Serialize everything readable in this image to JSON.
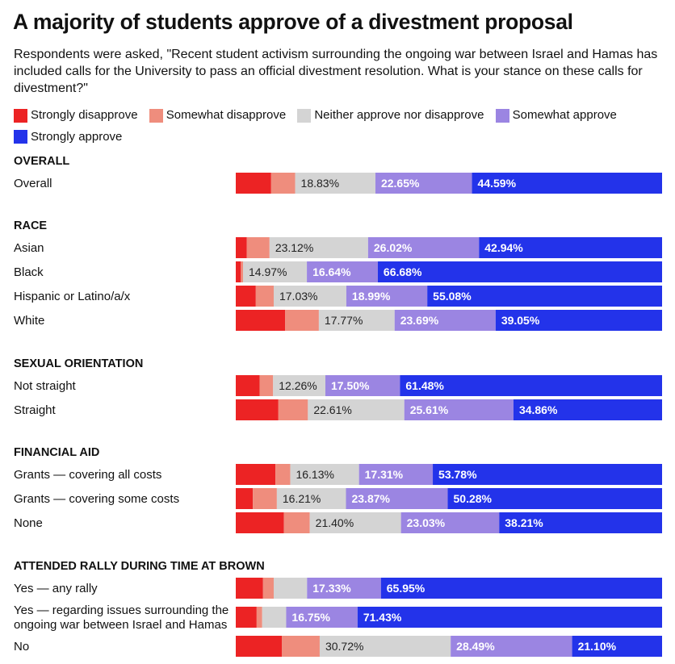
{
  "title": "A majority of students approve of a divestment proposal",
  "subtitle": "Respondents were asked, \"Recent student activism surrounding the ongoing war between Israel and Hamas has included calls for the University to pass an official divestment resolution. What is your stance on these calls for divestment?\"",
  "colors": {
    "strongly_disapprove": "#ec2324",
    "somewhat_disapprove": "#ef8d7d",
    "neither": "#d4d4d4",
    "somewhat_approve": "#9b85e2",
    "strongly_approve": "#2333ea"
  },
  "legend": [
    {
      "label": "Strongly disapprove",
      "color": "#ec2324"
    },
    {
      "label": "Somewhat disapprove",
      "color": "#ef8d7d"
    },
    {
      "label": "Neither approve nor disapprove",
      "color": "#d4d4d4"
    },
    {
      "label": "Somewhat approve",
      "color": "#9b85e2"
    },
    {
      "label": "Strongly approve",
      "color": "#2333ea"
    }
  ],
  "chart_data": {
    "type": "bar",
    "orientation": "horizontal",
    "stacked": true,
    "unit": "%",
    "series": [
      "Strongly disapprove",
      "Somewhat disapprove",
      "Neither approve nor disapprove",
      "Somewhat approve",
      "Strongly approve"
    ],
    "groups": [
      {
        "name": "OVERALL",
        "rows": [
          {
            "label": "Overall",
            "values": [
              8.3,
              5.63,
              18.83,
              22.65,
              44.59
            ]
          }
        ]
      },
      {
        "name": "RACE",
        "rows": [
          {
            "label": "Asian",
            "values": [
              2.6,
              5.32,
              23.12,
              26.02,
              42.94
            ]
          },
          {
            "label": "Black",
            "values": [
              1.2,
              0.51,
              14.97,
              16.64,
              66.68
            ]
          },
          {
            "label": "Hispanic or Latino/a/x",
            "values": [
              4.7,
              4.2,
              17.03,
              18.99,
              55.08
            ]
          },
          {
            "label": "White",
            "values": [
              11.6,
              7.89,
              17.77,
              23.69,
              39.05
            ]
          }
        ]
      },
      {
        "name": "SEXUAL ORIENTATION",
        "rows": [
          {
            "label": "Not straight",
            "values": [
              5.6,
              3.16,
              12.26,
              17.5,
              61.48
            ]
          },
          {
            "label": "Straight",
            "values": [
              10.0,
              6.92,
              22.61,
              25.61,
              34.86
            ]
          }
        ]
      },
      {
        "name": "FINANCIAL AID",
        "rows": [
          {
            "label": "Grants — covering all costs",
            "values": [
              9.3,
              3.48,
              16.13,
              17.31,
              53.78
            ]
          },
          {
            "label": "Grants — covering some costs",
            "values": [
              4.0,
              5.64,
              16.21,
              23.87,
              50.28
            ]
          },
          {
            "label": "None",
            "values": [
              11.3,
              6.06,
              21.4,
              23.03,
              38.21
            ]
          }
        ]
      },
      {
        "name": "ATTENDED RALLY DURING TIME AT BROWN",
        "rows": [
          {
            "label": "Yes — any rally",
            "values": [
              6.4,
              2.5,
              7.82,
              17.33,
              65.95
            ]
          },
          {
            "label": "Yes — regarding issues surrounding the ongoing war between Israel and Hamas",
            "values": [
              4.9,
              1.3,
              5.62,
              16.75,
              71.43
            ]
          },
          {
            "label": "No",
            "values": [
              10.8,
              8.89,
              30.72,
              28.49,
              21.1
            ]
          }
        ]
      }
    ],
    "label_threshold": 12,
    "xlim": [
      0,
      100
    ]
  }
}
